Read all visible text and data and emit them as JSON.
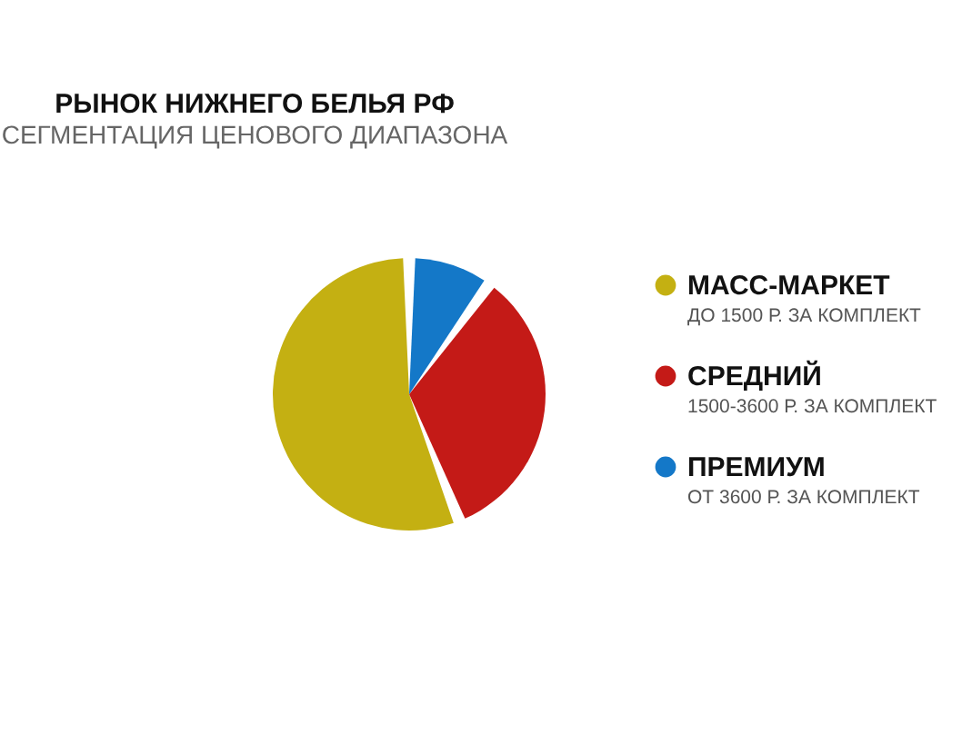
{
  "chart_data": {
    "type": "pie",
    "title": "РЫНОК НИЖНЕГО БЕЛЬЯ РФ",
    "subtitle": "СЕГМЕНТАЦИЯ ЦЕНОВОГО ДИАПАЗОНА",
    "categories": [
      "МАСС-МАРКЕТ",
      "СРЕДНИЙ",
      "ПРЕМИУМ"
    ],
    "values": [
      56,
      34,
      10
    ],
    "colors": [
      "#c4b012",
      "#c41a17",
      "#1478c8"
    ],
    "annotations": [
      "ДО 1500 Р. ЗА КОМПЛЕКТ",
      "1500-3600 Р. ЗА КОМПЛЕКТ",
      "ОТ 3600 Р. ЗА КОМПЛЕКТ"
    ],
    "legend": "right"
  }
}
